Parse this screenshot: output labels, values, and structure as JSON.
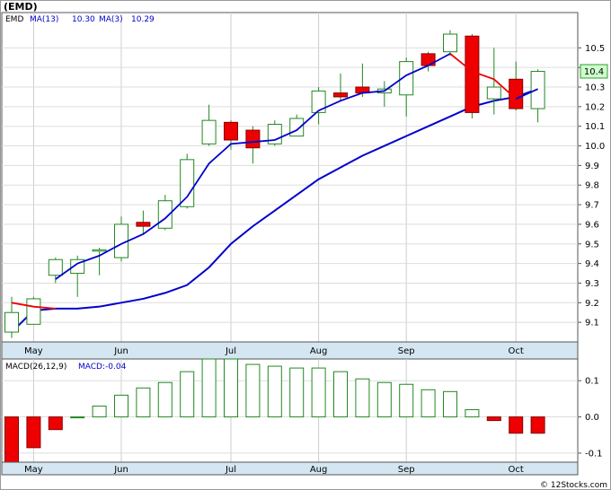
{
  "chart_data": [
    {
      "type": "candlestick",
      "symbol": "(EMD)",
      "legend": [
        {
          "label": "EMD",
          "color": "#000000"
        },
        {
          "label": "MA(13)",
          "value": "10.30",
          "color": "#0000cc"
        },
        {
          "label": "MA(3)",
          "value": "10.29",
          "color": "#0000cc"
        }
      ],
      "last_price_label": "10.4",
      "y_ticks": [
        "9.1",
        "9.2",
        "9.3",
        "9.4",
        "9.5",
        "9.6",
        "9.7",
        "9.8",
        "9.9",
        "10.0",
        "10.1",
        "10.2",
        "10.3",
        "10.4",
        "10.5"
      ],
      "ylim": [
        9.0,
        10.68
      ],
      "x_labels": [
        "May",
        "Jun",
        "Jul",
        "Aug",
        "Sep",
        "Oct"
      ],
      "x_label_weeks": [
        1,
        5,
        10,
        14,
        18,
        23
      ],
      "candles": [
        {
          "week": 0,
          "open": 9.05,
          "close": 9.15,
          "high": 9.23,
          "low": 9.02
        },
        {
          "week": 1,
          "open": 9.09,
          "close": 9.22,
          "high": 9.23,
          "low": 9.09
        },
        {
          "week": 2,
          "open": 9.34,
          "close": 9.42,
          "high": 9.43,
          "low": 9.3
        },
        {
          "week": 3,
          "open": 9.35,
          "close": 9.42,
          "high": 9.44,
          "low": 9.23
        },
        {
          "week": 4,
          "open": 9.47,
          "close": 9.47,
          "high": 9.48,
          "low": 9.34
        },
        {
          "week": 5,
          "open": 9.43,
          "close": 9.6,
          "high": 9.64,
          "low": 9.41
        },
        {
          "week": 6,
          "open": 9.61,
          "close": 9.59,
          "high": 9.67,
          "low": 9.55
        },
        {
          "week": 7,
          "open": 9.58,
          "close": 9.72,
          "high": 9.75,
          "low": 9.57
        },
        {
          "week": 8,
          "open": 9.69,
          "close": 9.93,
          "high": 9.96,
          "low": 9.68
        },
        {
          "week": 9,
          "open": 10.01,
          "close": 10.13,
          "high": 10.21,
          "low": 10.0
        },
        {
          "week": 10,
          "open": 10.12,
          "close": 10.03,
          "high": 10.13,
          "low": 9.98
        },
        {
          "week": 11,
          "open": 10.08,
          "close": 9.99,
          "high": 10.1,
          "low": 9.91
        },
        {
          "week": 12,
          "open": 10.01,
          "close": 10.11,
          "high": 10.13,
          "low": 10.0
        },
        {
          "week": 13,
          "open": 10.05,
          "close": 10.14,
          "high": 10.16,
          "low": 10.05
        },
        {
          "week": 14,
          "open": 10.17,
          "close": 10.28,
          "high": 10.3,
          "low": 10.11
        },
        {
          "week": 15,
          "open": 10.27,
          "close": 10.25,
          "high": 10.37,
          "low": 10.23
        },
        {
          "week": 16,
          "open": 10.3,
          "close": 10.27,
          "high": 10.42,
          "low": 10.25
        },
        {
          "week": 17,
          "open": 10.27,
          "close": 10.29,
          "high": 10.33,
          "low": 10.2
        },
        {
          "week": 18,
          "open": 10.26,
          "close": 10.43,
          "high": 10.45,
          "low": 10.15
        },
        {
          "week": 19,
          "open": 10.47,
          "close": 10.41,
          "high": 10.48,
          "low": 10.38
        },
        {
          "week": 20,
          "open": 10.48,
          "close": 10.57,
          "high": 10.59,
          "low": 10.46
        },
        {
          "week": 21,
          "open": 10.56,
          "close": 10.17,
          "high": 10.57,
          "low": 10.14
        },
        {
          "week": 22,
          "open": 10.24,
          "close": 10.3,
          "high": 10.5,
          "low": 10.16
        },
        {
          "week": 23,
          "open": 10.34,
          "close": 10.19,
          "high": 10.43,
          "low": 10.18
        },
        {
          "week": 24,
          "open": 10.19,
          "close": 10.38,
          "high": 10.39,
          "low": 10.12
        }
      ],
      "ma13": [
        {
          "week": 0,
          "value": 9.05
        },
        {
          "week": 1,
          "value": 9.16
        },
        {
          "week": 2,
          "value": 9.17
        },
        {
          "week": 3,
          "value": 9.17
        },
        {
          "week": 4,
          "value": 9.18
        },
        {
          "week": 5,
          "value": 9.2
        },
        {
          "week": 6,
          "value": 9.22
        },
        {
          "week": 7,
          "value": 9.25
        },
        {
          "week": 8,
          "value": 9.29
        },
        {
          "week": 9,
          "value": 9.38
        },
        {
          "week": 10,
          "value": 9.5
        },
        {
          "week": 11,
          "value": 9.59
        },
        {
          "week": 12,
          "value": 9.67
        },
        {
          "week": 13,
          "value": 9.75
        },
        {
          "week": 14,
          "value": 9.83
        },
        {
          "week": 15,
          "value": 9.89
        },
        {
          "week": 16,
          "value": 9.95
        },
        {
          "week": 17,
          "value": 10.0
        },
        {
          "week": 18,
          "value": 10.05
        },
        {
          "week": 19,
          "value": 10.1
        },
        {
          "week": 20,
          "value": 10.15
        },
        {
          "week": 21,
          "value": 10.2
        },
        {
          "week": 22,
          "value": 10.23
        },
        {
          "week": 23,
          "value": 10.25
        },
        {
          "week": 24,
          "value": 10.29
        }
      ],
      "ma3": [
        {
          "week": 0,
          "value": 9.2,
          "trend": "down"
        },
        {
          "week": 1,
          "value": 9.18,
          "trend": "down"
        },
        {
          "week": 2,
          "value": 9.17,
          "trend": "down"
        },
        {
          "week": 2,
          "value": 9.32,
          "trend": "up"
        },
        {
          "week": 3,
          "value": 9.4,
          "trend": "up"
        },
        {
          "week": 4,
          "value": 9.44,
          "trend": "up"
        },
        {
          "week": 5,
          "value": 9.5,
          "trend": "up"
        },
        {
          "week": 6,
          "value": 9.55,
          "trend": "up"
        },
        {
          "week": 7,
          "value": 9.63,
          "trend": "up"
        },
        {
          "week": 8,
          "value": 9.74,
          "trend": "up"
        },
        {
          "week": 9,
          "value": 9.91,
          "trend": "up"
        },
        {
          "week": 10,
          "value": 10.01,
          "trend": "up"
        },
        {
          "week": 11,
          "value": 10.02,
          "trend": "up"
        },
        {
          "week": 12,
          "value": 10.03,
          "trend": "up"
        },
        {
          "week": 13,
          "value": 10.08,
          "trend": "up"
        },
        {
          "week": 14,
          "value": 10.18,
          "trend": "up"
        },
        {
          "week": 15,
          "value": 10.23,
          "trend": "up"
        },
        {
          "week": 16,
          "value": 10.27,
          "trend": "up"
        },
        {
          "week": 17,
          "value": 10.28,
          "trend": "up"
        },
        {
          "week": 18,
          "value": 10.36,
          "trend": "up"
        },
        {
          "week": 19,
          "value": 10.41,
          "trend": "up"
        },
        {
          "week": 20,
          "value": 10.47,
          "trend": "up"
        },
        {
          "week": 20,
          "value": 10.47,
          "trend": "down"
        },
        {
          "week": 21,
          "value": 10.38,
          "trend": "down"
        },
        {
          "week": 22,
          "value": 10.34,
          "trend": "down"
        },
        {
          "week": 23,
          "value": 10.24,
          "trend": "down"
        },
        {
          "week": 23,
          "value": 10.24,
          "trend": "up"
        },
        {
          "week": 24,
          "value": 10.29,
          "trend": "up"
        }
      ]
    },
    {
      "type": "bar",
      "legend_label": "MACD(26,12,9)",
      "value_label": "MACD:-0.04",
      "y_ticks": [
        "-0.1",
        "0.0",
        "0.1"
      ],
      "ylim": [
        -0.125,
        0.16
      ],
      "x_labels": [
        "May",
        "Jun",
        "Jul",
        "Aug",
        "Sep",
        "Oct"
      ],
      "x_label_weeks": [
        1,
        5,
        10,
        14,
        18,
        23
      ],
      "weeks": [
        0,
        1,
        2,
        3,
        4,
        5,
        6,
        7,
        8,
        9,
        10,
        11,
        12,
        13,
        14,
        15,
        16,
        17,
        18,
        19,
        20,
        21,
        22,
        23,
        24
      ],
      "values": [
        -0.125,
        -0.085,
        -0.035,
        0.0,
        0.03,
        0.06,
        0.08,
        0.095,
        0.125,
        0.16,
        0.16,
        0.145,
        0.14,
        0.135,
        0.135,
        0.125,
        0.105,
        0.095,
        0.09,
        0.075,
        0.07,
        0.02,
        -0.01,
        -0.045,
        -0.045
      ]
    }
  ],
  "footer": {
    "copyright": "© 12Stocks.com"
  }
}
